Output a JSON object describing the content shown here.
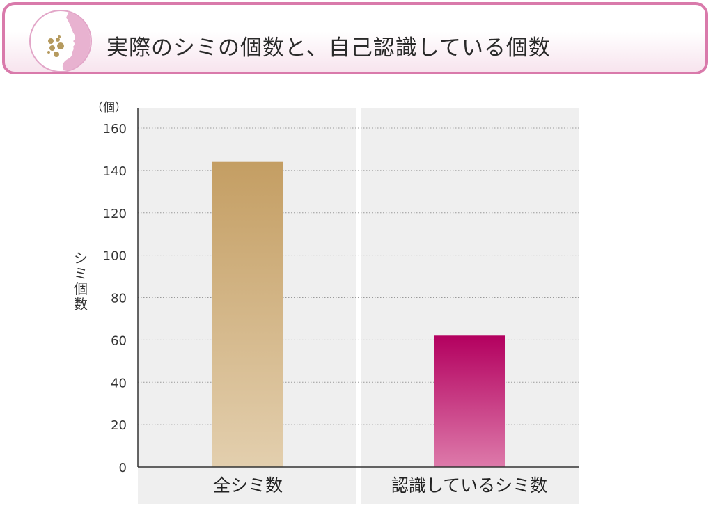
{
  "header": {
    "title": "実際のシミの個数と、自己認識している個数",
    "icon": "face-with-spots-icon"
  },
  "chart_data": {
    "type": "bar",
    "title": "",
    "categories": [
      "全シミ数",
      "認識しているシミ数"
    ],
    "values": [
      144,
      62
    ],
    "ylabel": "シミ個数",
    "yunit": "（個）",
    "ylim": [
      0,
      160
    ],
    "yticks": [
      0,
      20,
      40,
      60,
      80,
      100,
      120,
      140,
      160
    ],
    "grid": true,
    "colors": {
      "bar1_top": "#c49e63",
      "bar1_bottom": "#e3cfae",
      "bar2_top": "#b3005f",
      "bar2_bottom": "#dd7aaa",
      "panel": "#efefef",
      "header_border": "#d97aab"
    }
  }
}
